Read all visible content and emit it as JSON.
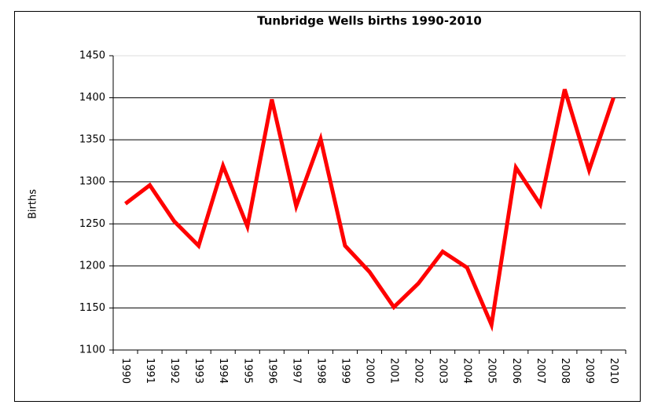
{
  "chart_data": {
    "type": "line",
    "title": "Tunbridge Wells births 1990-2010",
    "ylabel": "Births",
    "categories": [
      "1990",
      "1991",
      "1992",
      "1993",
      "1994",
      "1995",
      "1996",
      "1997",
      "1998",
      "1999",
      "2000",
      "2001",
      "2002",
      "2003",
      "2004",
      "2005",
      "2006",
      "2007",
      "2008",
      "2009",
      "2010"
    ],
    "series": [
      {
        "name": "Births",
        "color": "#ff0000",
        "values": [
          1274,
          1296,
          1253,
          1224,
          1319,
          1247,
          1398,
          1271,
          1351,
          1224,
          1193,
          1151,
          1179,
          1217,
          1198,
          1130,
          1317,
          1273,
          1410,
          1314,
          1400
        ]
      }
    ],
    "ylim": [
      1100,
      1450
    ],
    "yticks": [
      1100,
      1150,
      1200,
      1250,
      1300,
      1350,
      1400,
      1450
    ],
    "grid": true
  }
}
